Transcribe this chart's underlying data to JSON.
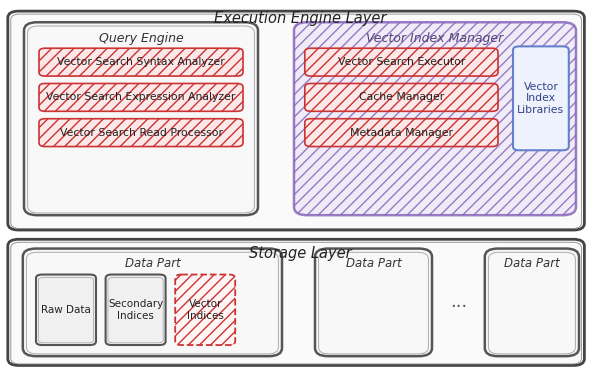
{
  "bg_color": "#ffffff",
  "title_exec": "Execution Engine Layer",
  "title_storage": "Storage Layer",
  "query_engine_label": "Query Engine",
  "vector_index_manager_label": "Vector Index Manager",
  "query_engine_boxes": [
    "Vector Search Syntax Analyzer",
    "Vector Search Expression Analyzer",
    "Vector Search Read Processor"
  ],
  "vector_index_boxes": [
    "Vector Search Executor",
    "Cache Manager",
    "Metadata Manager"
  ],
  "vector_index_library_label": "Vector\nIndex\nLibraries",
  "data_part_label": "Data Part",
  "storage_inner_boxes": [
    "Raw Data",
    "Secondary\nIndices",
    "Vector\nIndices"
  ],
  "ellipsis": "...",
  "exec_outer": [
    0.013,
    0.03,
    0.974,
    0.62
  ],
  "query_eng": [
    0.04,
    0.06,
    0.43,
    0.58
  ],
  "vec_idx_mgr": [
    0.49,
    0.06,
    0.96,
    0.58
  ],
  "storage_outer": [
    0.013,
    0.645,
    0.974,
    0.985
  ],
  "data_part1": [
    0.038,
    0.67,
    0.47,
    0.96
  ],
  "data_part2": [
    0.525,
    0.67,
    0.72,
    0.96
  ],
  "data_part3": [
    0.808,
    0.67,
    0.965,
    0.96
  ]
}
